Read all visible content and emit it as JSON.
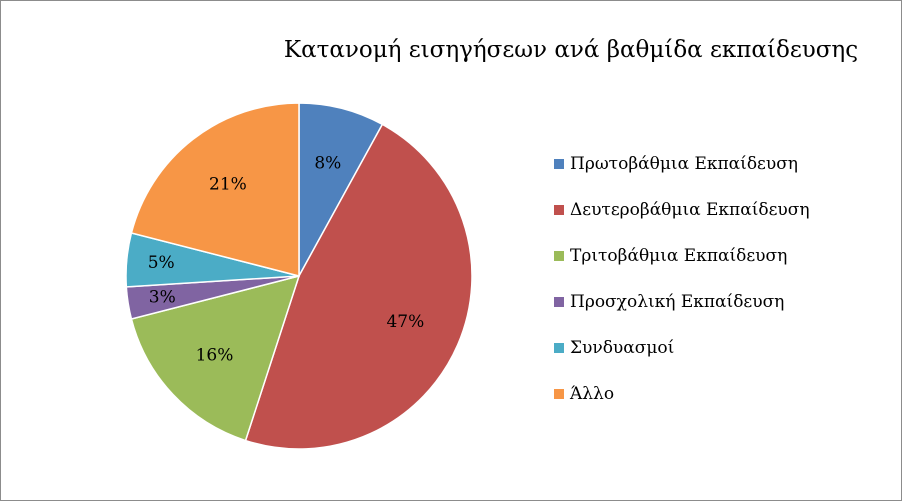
{
  "chart_data": {
    "type": "pie",
    "title": "Κατανομή εισηγήσεων ανά βαθμίδα εκπαίδευσης",
    "legend_position": "right",
    "slices": [
      {
        "name": "Πρωτοβάθμια Εκπαίδευση",
        "value": 8,
        "label": "8%",
        "color": "#4f81bd"
      },
      {
        "name": "Δευτεροβάθμια Εκπαίδευση",
        "value": 47,
        "label": "47%",
        "color": "#c0504d"
      },
      {
        "name": "Τριτοβάθμια Εκπαίδευση",
        "value": 16,
        "label": "16%",
        "color": "#9bbb59"
      },
      {
        "name": "Προσχολική Εκπαίδευση",
        "value": 3,
        "label": "3%",
        "color": "#8064a2"
      },
      {
        "name": "Συνδυασμοί",
        "value": 5,
        "label": "5%",
        "color": "#4bacc6"
      },
      {
        "name": "Άλλο",
        "value": 21,
        "label": "21%",
        "color": "#f79646"
      }
    ]
  }
}
